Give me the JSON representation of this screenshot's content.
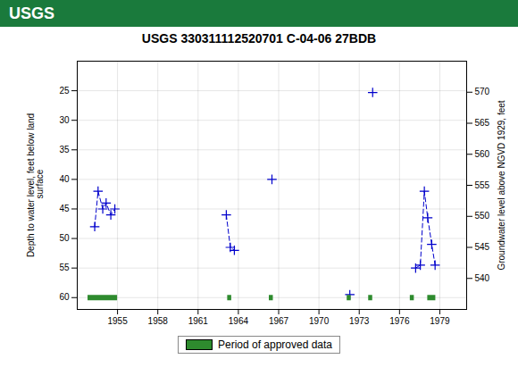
{
  "chart_data": {
    "type": "line",
    "title": "USGS 330311112520701 C-04-06 27BDB",
    "annotations": [
      "USGS"
    ],
    "ylabel": "Depth to water level, feet below land\n surface",
    "y2label": "Groundwater level above NGVD 1929, feet",
    "xlim": [
      1952.0,
      1981.0
    ],
    "xticks": [
      1955,
      1958,
      1961,
      1964,
      1967,
      1970,
      1973,
      1976,
      1979
    ],
    "ylim": [
      62,
      20
    ],
    "yticks": [
      25,
      30,
      35,
      40,
      45,
      50,
      55,
      60
    ],
    "y2lim": [
      535,
      575
    ],
    "y2ticks": [
      570,
      565,
      560,
      555,
      550,
      545,
      540
    ],
    "grid": true,
    "legend": "bottom",
    "series": [
      {
        "type": "line",
        "color": "#0000cc",
        "line_style": "dashed",
        "marker": "+",
        "x": [
          1953.3,
          1953.55,
          1953.9,
          1954.15,
          1954.5,
          1954.8
        ],
        "values": [
          48.0,
          42.0,
          45.0,
          44.0,
          46.0,
          45.0
        ]
      },
      {
        "type": "line",
        "color": "#0000cc",
        "line_style": "dashed",
        "marker": "+",
        "x": [
          1963.1,
          1963.4,
          1963.7
        ],
        "values": [
          46.0,
          51.5,
          52.0
        ]
      },
      {
        "type": "line",
        "color": "#0000cc",
        "line_style": "none",
        "marker": "+",
        "x": [
          1966.5
        ],
        "values": [
          40.0
        ]
      },
      {
        "type": "line",
        "color": "#0000cc",
        "line_style": "none",
        "marker": "+",
        "x": [
          1972.3
        ],
        "values": [
          59.5
        ]
      },
      {
        "type": "line",
        "color": "#0000cc",
        "line_style": "none",
        "marker": "+",
        "x": [
          1974.0
        ],
        "values": [
          25.3
        ]
      },
      {
        "type": "line",
        "color": "#0000cc",
        "line_style": "dashed",
        "marker": "+",
        "x": [
          1977.2,
          1977.55,
          1977.85,
          1978.1,
          1978.4,
          1978.65
        ],
        "values": [
          55.0,
          54.5,
          42.0,
          46.5,
          51.0,
          54.5
        ]
      },
      {
        "type": "bar",
        "name": "Period of approved data",
        "color": "#2e8b2e",
        "x_start": [
          1952.8,
          1963.2,
          1966.3,
          1972.1,
          1973.7,
          1976.8,
          1978.1
        ],
        "x_end": [
          1955.0,
          1963.5,
          1966.6,
          1972.4,
          1974.0,
          1977.1,
          1978.7
        ],
        "values": [
          60.0,
          60.0,
          60.0,
          60.0,
          60.0,
          60.0,
          60.0
        ]
      }
    ]
  }
}
